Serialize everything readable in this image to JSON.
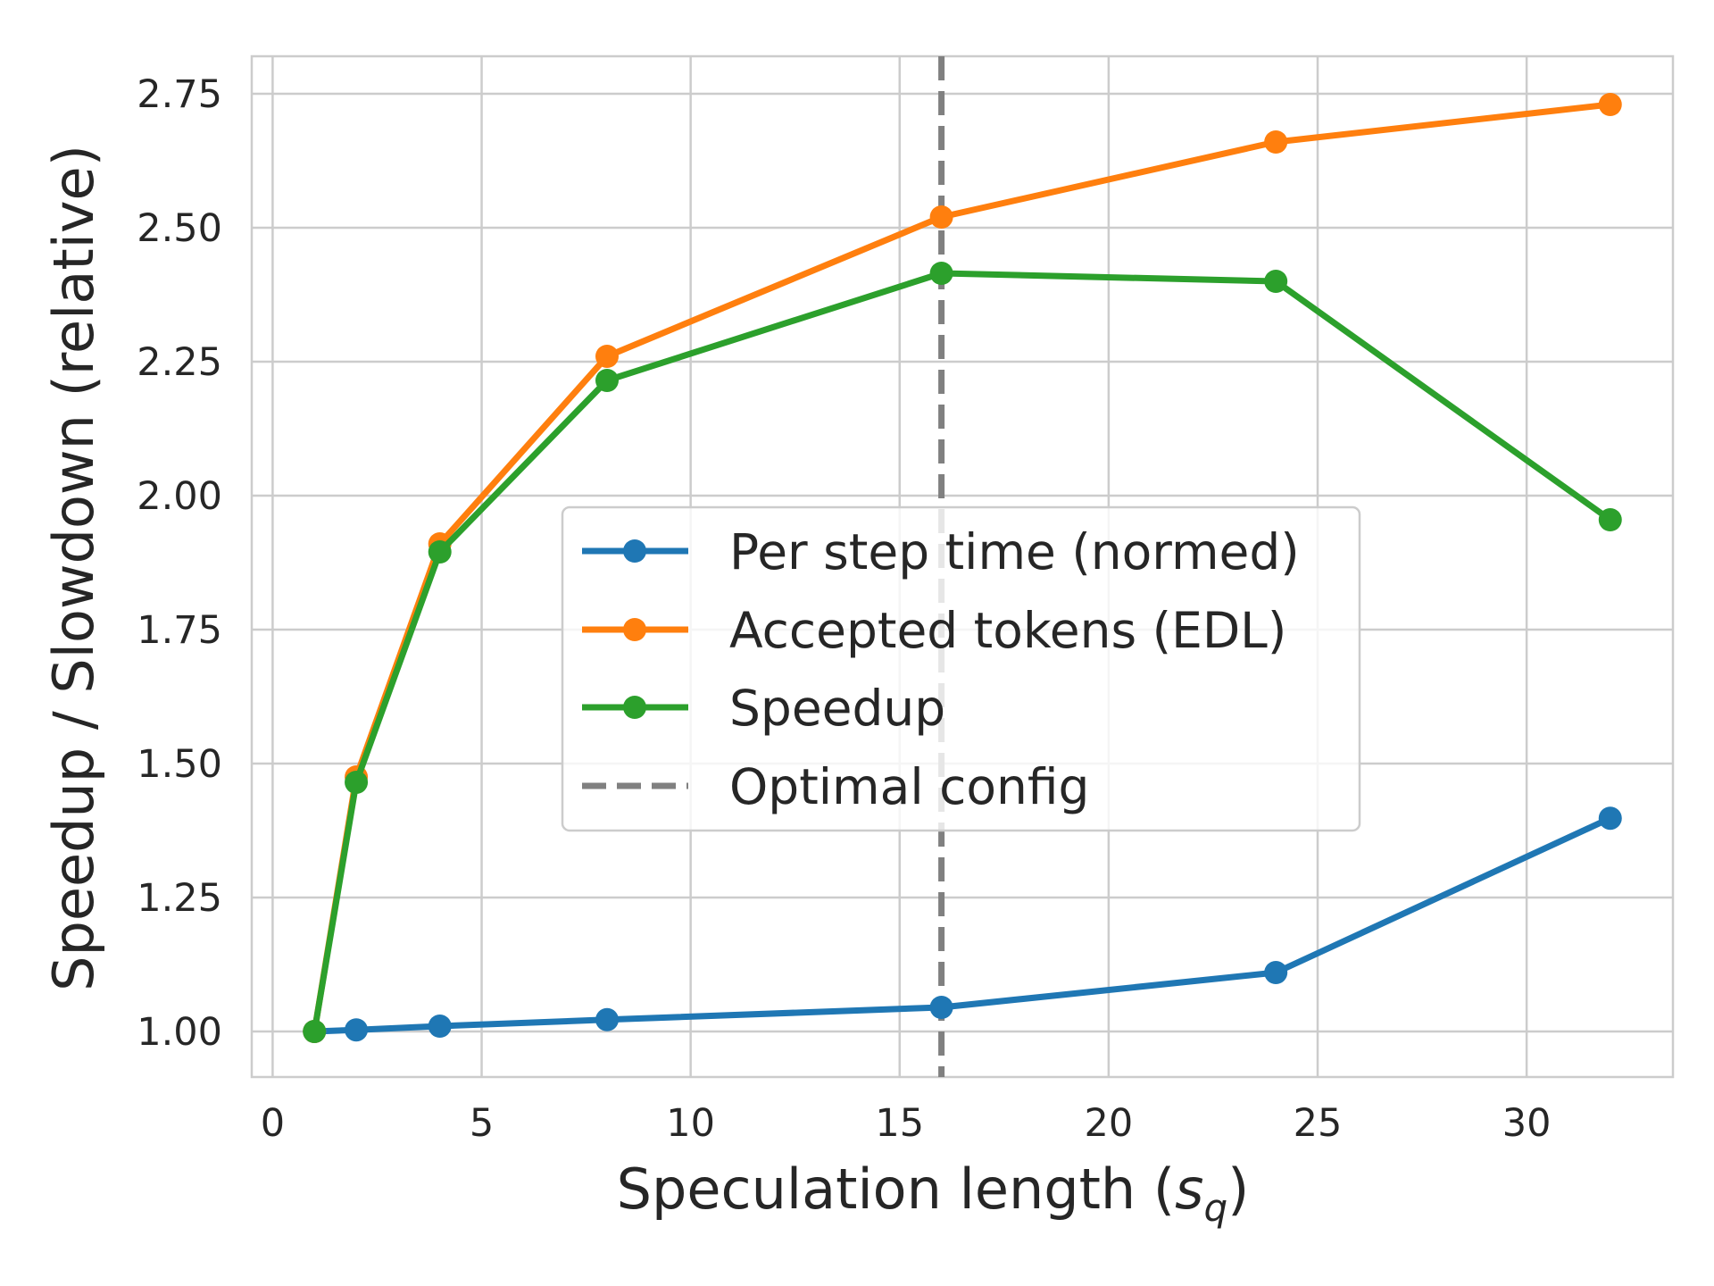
{
  "chart_data": {
    "type": "line",
    "xlabel": "Speculation length (",
    "xlabel_var": "s",
    "xlabel_sub": "q",
    "xlabel_end": ")",
    "ylabel": "Speedup / Slowdown (relative)",
    "xlim": [
      -0.5,
      33.5
    ],
    "ylim": [
      0.915,
      2.82
    ],
    "xticks": [
      0,
      5,
      10,
      15,
      20,
      25,
      30
    ],
    "xtick_labels": [
      "0",
      "5",
      "10",
      "15",
      "20",
      "25",
      "30"
    ],
    "yticks": [
      1.0,
      1.25,
      1.5,
      1.75,
      2.0,
      2.25,
      2.5,
      2.75
    ],
    "ytick_labels": [
      "1.00",
      "1.25",
      "1.50",
      "1.75",
      "2.00",
      "2.25",
      "2.50",
      "2.75"
    ],
    "grid": true,
    "legend_position": "center",
    "x": [
      1,
      2,
      4,
      8,
      16,
      24,
      32
    ],
    "series": [
      {
        "name": "Per step time (normed)",
        "color": "#1f77b4",
        "values": [
          1.0,
          1.003,
          1.01,
          1.022,
          1.045,
          1.11,
          1.398
        ]
      },
      {
        "name": "Accepted tokens (EDL)",
        "color": "#ff7f0e",
        "values": [
          1.0,
          1.475,
          1.91,
          2.26,
          2.52,
          2.66,
          2.73
        ]
      },
      {
        "name": "Speedup",
        "color": "#2ca02c",
        "values": [
          1.0,
          1.465,
          1.895,
          2.215,
          2.415,
          2.4,
          1.955
        ]
      }
    ],
    "reference_line": {
      "name": "Optimal config",
      "x": 16,
      "color": "#808080",
      "style": "dashed"
    }
  }
}
